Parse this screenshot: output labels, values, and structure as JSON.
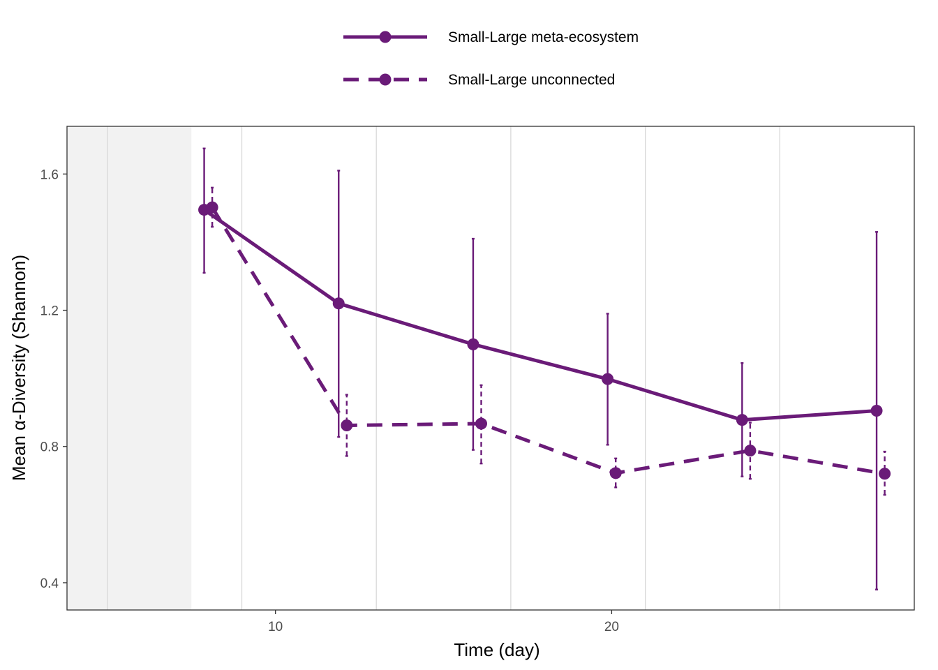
{
  "chart_data": {
    "type": "line",
    "xlabel": "Time (day)",
    "ylabel": "Mean α-Diversity (Shannon)",
    "xlim": [
      3.8,
      29.0
    ],
    "ylim": [
      0.32,
      1.74
    ],
    "x_ticks": [
      10,
      20
    ],
    "y_ticks": [
      0.4,
      0.8,
      1.2,
      1.6
    ],
    "x_minor_grid": [
      5,
      9,
      13,
      17,
      21,
      25
    ],
    "shaded_region": [
      3.8,
      7.5
    ],
    "grid": true,
    "legend_position": "top",
    "colors": {
      "series": "#6a1b78",
      "grid": "#d6d6d6",
      "shade": "#f2f2f2",
      "frame": "#333333"
    },
    "series": [
      {
        "name": "Small-Large meta-ecosystem",
        "linestyle": "solid",
        "x": [
          7.88,
          11.88,
          15.88,
          19.88,
          23.88,
          27.88
        ],
        "y": [
          1.495,
          1.22,
          1.1,
          0.998,
          0.878,
          0.905
        ],
        "err_low": [
          1.31,
          0.828,
          0.79,
          0.805,
          0.712,
          0.38
        ],
        "err_high": [
          1.675,
          1.61,
          1.41,
          1.19,
          1.045,
          1.43
        ]
      },
      {
        "name": "Small-Large unconnected",
        "linestyle": "dashed",
        "x": [
          8.12,
          12.12,
          16.12,
          20.12,
          24.12,
          28.12
        ],
        "y": [
          1.502,
          0.862,
          0.867,
          0.722,
          0.788,
          0.72
        ],
        "err_low": [
          1.445,
          0.772,
          0.75,
          0.68,
          0.705,
          0.658
        ],
        "err_high": [
          1.56,
          0.952,
          0.98,
          0.765,
          0.87,
          0.785
        ]
      }
    ]
  }
}
